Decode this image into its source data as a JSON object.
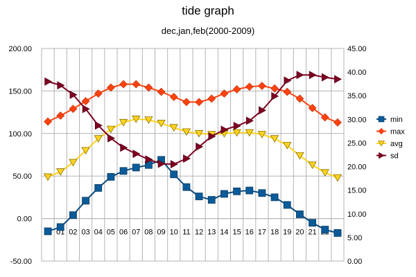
{
  "chart_data": {
    "type": "line",
    "title": "tide graph",
    "subtitle": "dec,jan,feb(2000-2009)",
    "categories": [
      "",
      "01",
      "02",
      "03",
      "04",
      "05",
      "06",
      "07",
      "08",
      "09",
      "10",
      "11",
      "12",
      "13",
      "14",
      "15",
      "16",
      "17",
      "18",
      "19",
      "20",
      "21",
      "22",
      "23"
    ],
    "y_left": {
      "min": -50,
      "max": 200,
      "step": 50,
      "tick_labels": [
        "-50.00",
        "0.00",
        "50.00",
        "100.00",
        "150.00",
        "200.00"
      ]
    },
    "y_right": {
      "min": 0,
      "max": 45,
      "step": 5,
      "tick_labels": [
        "0.00",
        "5.00",
        "10.00",
        "15.00",
        "20.00",
        "25.00",
        "30.00",
        "35.00",
        "40.00",
        "45.00"
      ]
    },
    "grid": true,
    "legend_position": "right",
    "series": [
      {
        "name": "min",
        "axis": "left",
        "marker": "square",
        "color": "#0b4a7e",
        "marker_color": "#0b5b99",
        "values": [
          -15,
          -10,
          4,
          21,
          36,
          49,
          56,
          60,
          63,
          69,
          52,
          37,
          26,
          22,
          29,
          32,
          33,
          30,
          25,
          16,
          5,
          -5,
          -13,
          -17
        ]
      },
      {
        "name": "max",
        "axis": "left",
        "marker": "diamond",
        "color": "#ff420e",
        "marker_color": "#ff420e",
        "values": [
          114,
          121,
          129,
          138,
          147,
          154,
          158,
          158,
          154,
          149,
          143,
          137,
          137,
          141,
          147,
          152,
          155,
          156,
          153,
          149,
          141,
          130,
          119,
          113
        ]
      },
      {
        "name": "avg",
        "axis": "left",
        "marker": "triangle-down",
        "color": "#ffd320",
        "marker_color": "#ffd320",
        "values": [
          49,
          55,
          66,
          80,
          94,
          105,
          113,
          117,
          116,
          112,
          107,
          102,
          100,
          99,
          100,
          101,
          101,
          99,
          94,
          86,
          74,
          63,
          54,
          48
        ]
      },
      {
        "name": "sd",
        "axis": "right",
        "marker": "triangle-right",
        "color": "#7e0021",
        "marker_color": "#7e0021",
        "values": [
          38,
          37.2,
          35.2,
          32.2,
          28.7,
          26,
          24,
          22.7,
          21.5,
          20.6,
          20.5,
          21.7,
          24.2,
          26.4,
          27.8,
          28.6,
          29.7,
          31.9,
          34.9,
          38.2,
          39.4,
          39.4,
          38.9,
          38.5
        ]
      }
    ]
  }
}
